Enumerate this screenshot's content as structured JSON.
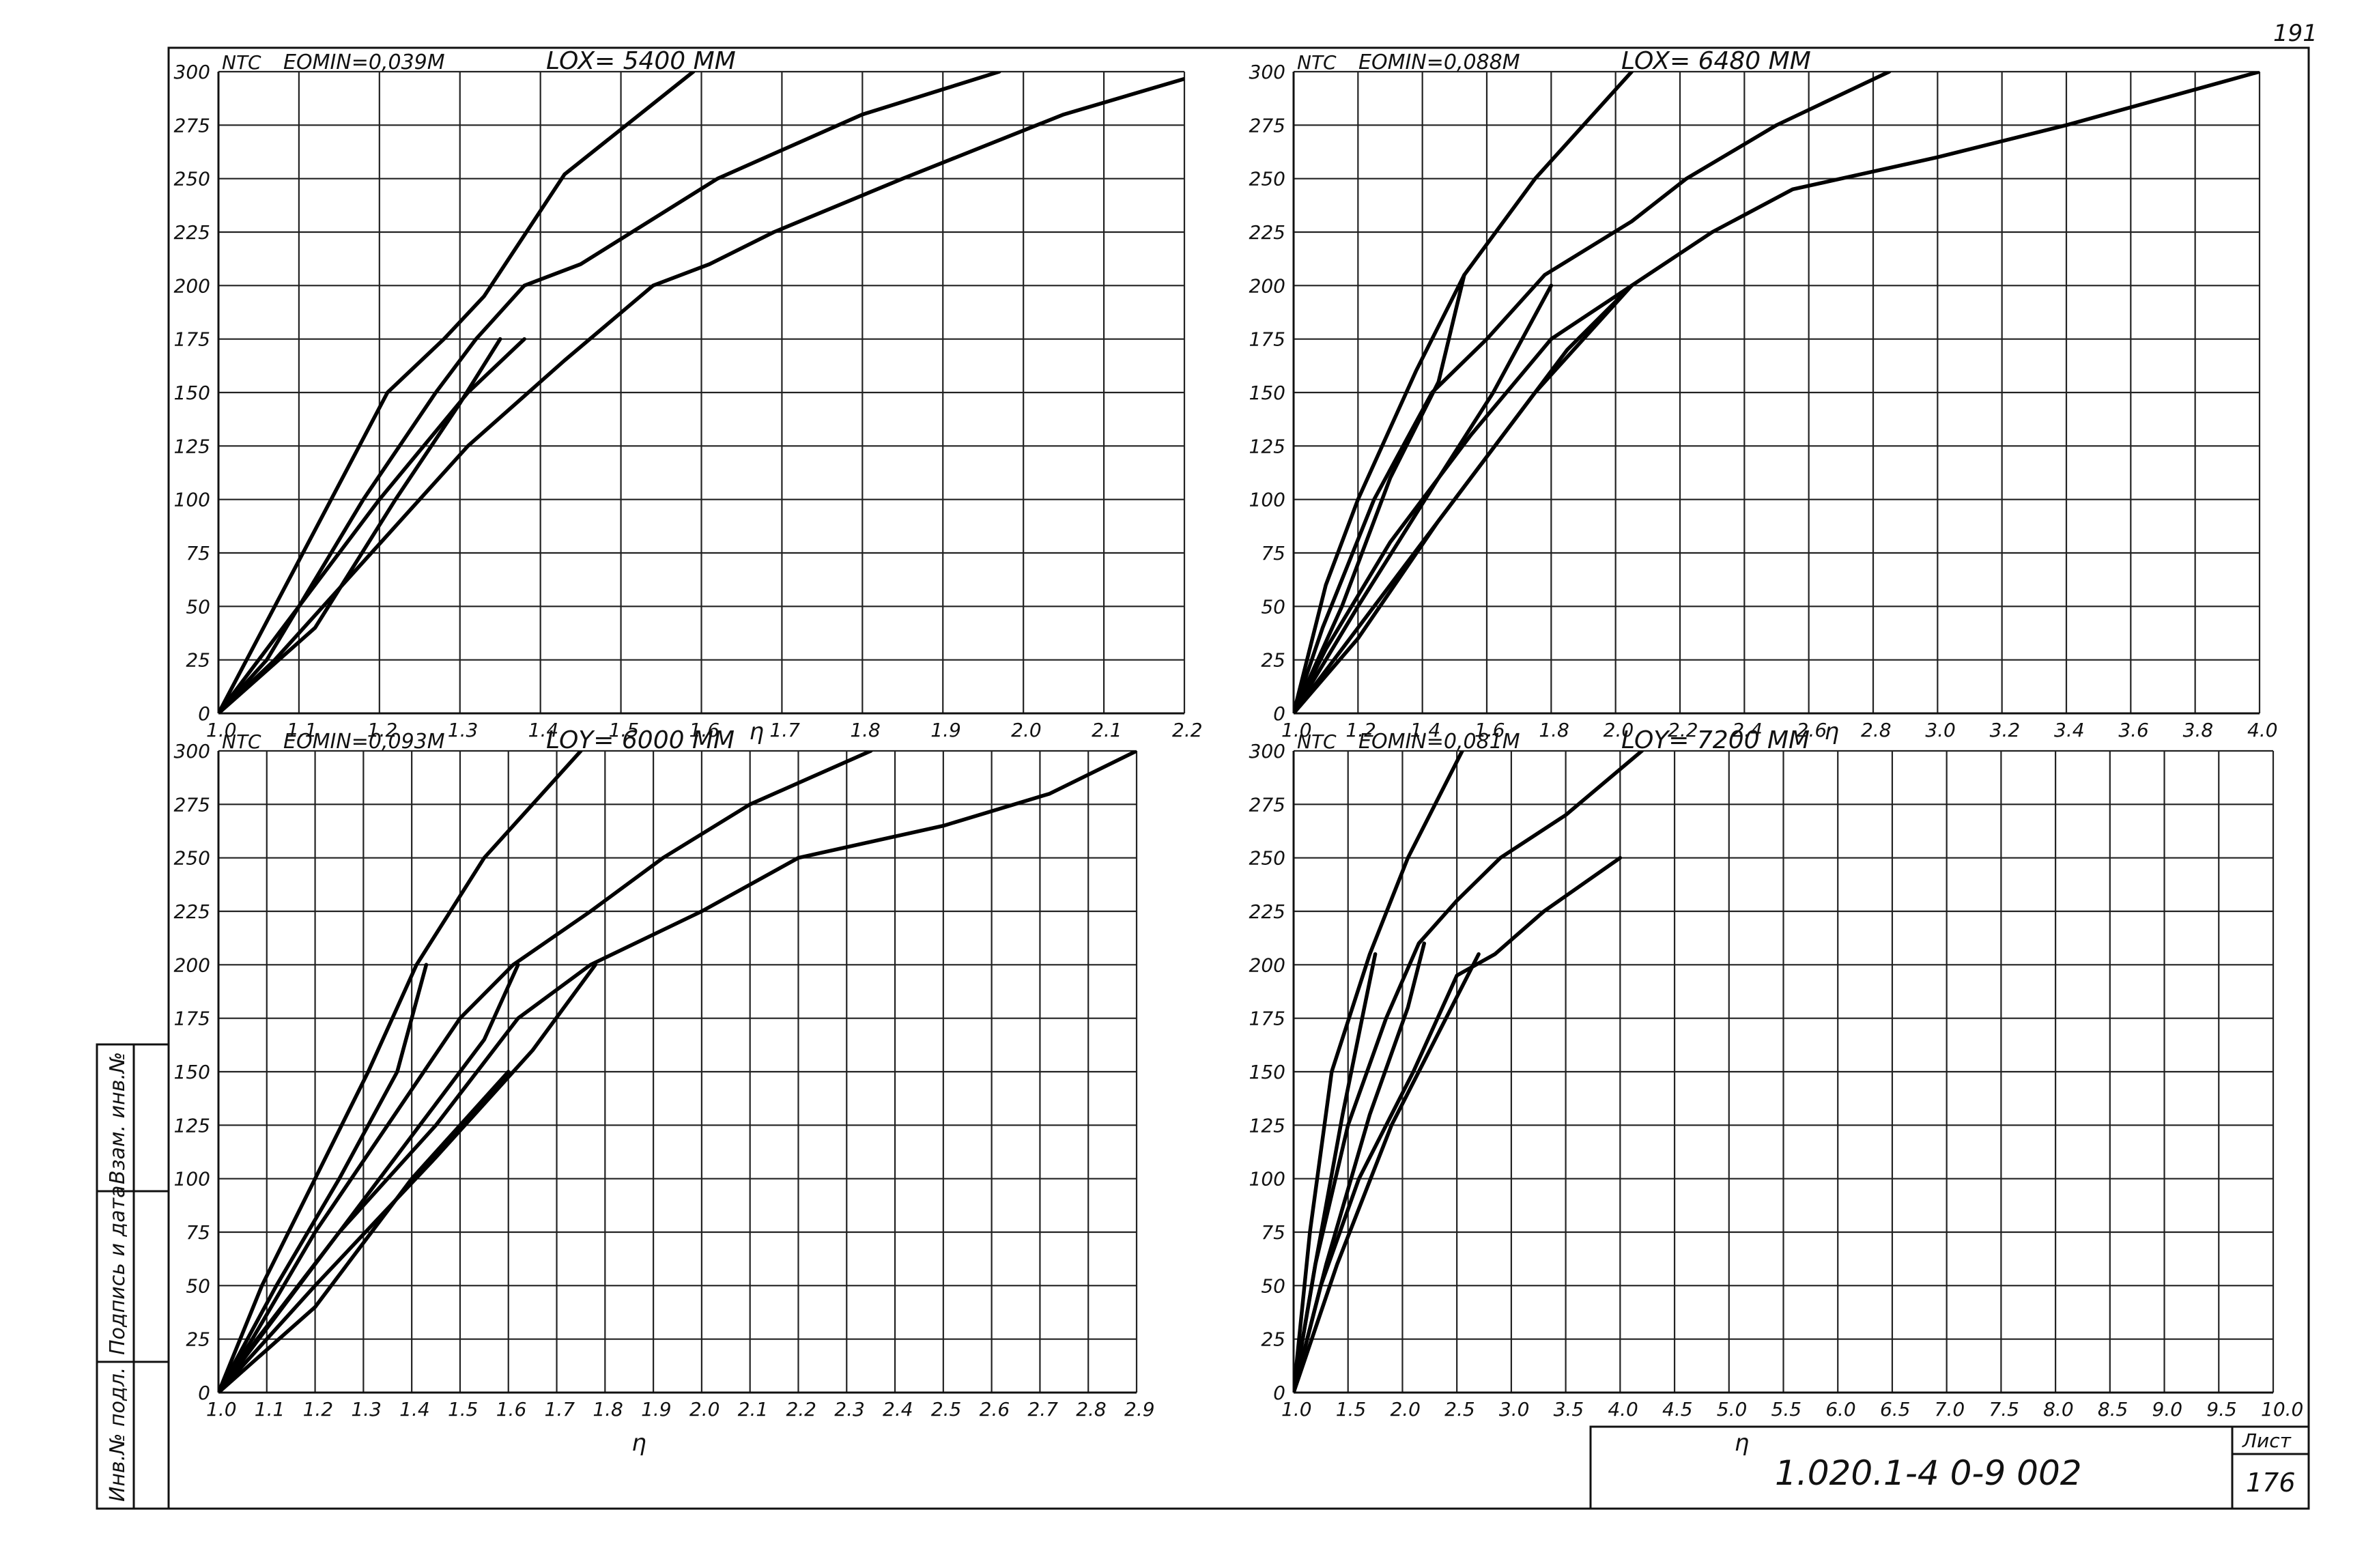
{
  "page": {
    "page_number": "191",
    "document_code": "1.020.1-4  0-9  002",
    "sheet_label": "Лист",
    "sheet_number": "176",
    "side_stamp": [
      "Инв.№ подл.",
      "Подпись и дата",
      "Взам. инв.№"
    ]
  },
  "chart_data": [
    {
      "type": "line",
      "ylabel": "NTC",
      "xlabel": "η",
      "eo_label": "EOMIN=0,039М",
      "lo_label": "LOX= 5400 ММ",
      "xlim": [
        1.0,
        2.2
      ],
      "ylim": [
        0,
        300
      ],
      "x_ticks": [
        "1.0",
        "1.1",
        "1.2",
        "1.3",
        "1.4",
        "1.5",
        "1.6",
        "1.7",
        "1.8",
        "1.9",
        "2.0",
        "2.1",
        "2.2"
      ],
      "x_tick_values": [
        1.0,
        1.1,
        1.2,
        1.3,
        1.4,
        1.5,
        1.6,
        1.7,
        1.8,
        1.9,
        2.0,
        2.1,
        2.2
      ],
      "y_ticks": [
        "0",
        "25",
        "50",
        "75",
        "100",
        "125",
        "150",
        "175",
        "200",
        "225",
        "250",
        "275",
        "300"
      ],
      "y_tick_values": [
        0,
        25,
        50,
        75,
        100,
        125,
        150,
        175,
        200,
        225,
        250,
        275,
        300
      ],
      "series": [
        {
          "x": [
            1.0,
            1.07,
            1.14,
            1.21,
            1.28,
            1.33,
            1.43,
            1.59
          ],
          "y": [
            0,
            50,
            100,
            150,
            175,
            195,
            252,
            300
          ]
        },
        {
          "x": [
            1.0,
            1.06,
            1.18,
            1.27,
            1.32,
            1.38,
            1.45,
            1.62,
            1.8,
            1.97
          ],
          "y": [
            0,
            25,
            100,
            150,
            175,
            200,
            210,
            250,
            280,
            300
          ]
        },
        {
          "x": [
            1.0,
            1.07,
            1.19,
            1.31,
            1.43,
            1.54,
            1.61,
            1.69,
            1.85,
            2.05,
            2.23
          ],
          "y": [
            0,
            25,
            75,
            125,
            165,
            200,
            210,
            225,
            250,
            280,
            300
          ]
        },
        {
          "x": [
            1.0,
            1.1,
            1.2,
            1.31,
            1.38
          ],
          "y": [
            0,
            50,
            100,
            150,
            175
          ]
        },
        {
          "x": [
            1.0,
            1.12,
            1.22,
            1.3,
            1.35
          ],
          "y": [
            0,
            40,
            100,
            145,
            175
          ]
        }
      ]
    },
    {
      "type": "line",
      "ylabel": "NTC",
      "xlabel": "η",
      "eo_label": "EOMIN=0,088М",
      "lo_label": "LOX= 6480 ММ",
      "xlim": [
        1.0,
        4.0
      ],
      "ylim": [
        0,
        300
      ],
      "x_ticks": [
        "1.0",
        "1.2",
        "1.4",
        "1.6",
        "1.8",
        "2.0",
        "2.2",
        "2.4",
        "2.6",
        "2.8",
        "3.0",
        "3.2",
        "3.4",
        "3.6",
        "3.8",
        "4.0"
      ],
      "x_tick_values": [
        1.0,
        1.2,
        1.4,
        1.6,
        1.8,
        2.0,
        2.2,
        2.4,
        2.6,
        2.8,
        3.0,
        3.2,
        3.4,
        3.6,
        3.8,
        4.0
      ],
      "y_ticks": [
        "0",
        "25",
        "50",
        "75",
        "100",
        "125",
        "150",
        "175",
        "200",
        "225",
        "250",
        "275",
        "300"
      ],
      "y_tick_values": [
        0,
        25,
        50,
        75,
        100,
        125,
        150,
        175,
        200,
        225,
        250,
        275,
        300
      ],
      "series": [
        {
          "x": [
            1.0,
            1.1,
            1.2,
            1.38,
            1.53,
            1.75,
            2.05
          ],
          "y": [
            0,
            60,
            100,
            160,
            205,
            250,
            300
          ]
        },
        {
          "x": [
            1.0,
            1.09,
            1.25,
            1.43,
            1.6,
            1.75,
            1.78,
            2.05,
            2.22,
            2.5,
            2.85
          ],
          "y": [
            0,
            40,
            100,
            150,
            175,
            200,
            205,
            230,
            250,
            275,
            300
          ]
        },
        {
          "x": [
            1.0,
            1.1,
            1.3,
            1.55,
            1.8,
            2.0,
            2.1,
            2.3,
            2.55,
            2.7,
            3.0,
            3.4,
            4.0
          ],
          "y": [
            0,
            30,
            80,
            130,
            175,
            195,
            205,
            225,
            245,
            250,
            260,
            275,
            300
          ]
        },
        {
          "x": [
            1.0,
            1.15,
            1.3,
            1.45,
            1.53
          ],
          "y": [
            0,
            50,
            110,
            155,
            205
          ]
        },
        {
          "x": [
            1.0,
            1.2,
            1.45,
            1.62,
            1.8
          ],
          "y": [
            0,
            50,
            110,
            150,
            200
          ]
        },
        {
          "x": [
            1.0,
            1.3,
            1.6,
            1.85,
            2.05
          ],
          "y": [
            0,
            60,
            120,
            170,
            200
          ]
        },
        {
          "x": [
            1.0,
            1.2,
            1.45,
            1.75,
            2.05
          ],
          "y": [
            0,
            35,
            90,
            150,
            200
          ]
        }
      ]
    },
    {
      "type": "line",
      "ylabel": "NTC",
      "xlabel": "η",
      "eo_label": "EOMIN=0,093М",
      "lo_label": "LOY= 6000 ММ",
      "xlim": [
        1.0,
        2.9
      ],
      "ylim": [
        0,
        300
      ],
      "x_ticks": [
        "1.0",
        "1.1",
        "1.2",
        "1.3",
        "1.4",
        "1.5",
        "1.6",
        "1.7",
        "1.8",
        "1.9",
        "2.0",
        "2.1",
        "2.2",
        "2.3",
        "2.4",
        "2.5",
        "2.6",
        "2.7",
        "2.8",
        "2.9"
      ],
      "x_tick_values": [
        1.0,
        1.1,
        1.2,
        1.3,
        1.4,
        1.5,
        1.6,
        1.7,
        1.8,
        1.9,
        2.0,
        2.1,
        2.2,
        2.3,
        2.4,
        2.5,
        2.6,
        2.7,
        2.8,
        2.9
      ],
      "y_ticks": [
        "0",
        "25",
        "50",
        "75",
        "100",
        "125",
        "150",
        "175",
        "200",
        "225",
        "250",
        "275",
        "300"
      ],
      "y_tick_values": [
        0,
        25,
        50,
        75,
        100,
        125,
        150,
        175,
        200,
        225,
        250,
        275,
        300
      ],
      "series": [
        {
          "x": [
            1.0,
            1.09,
            1.2,
            1.31,
            1.41,
            1.55,
            1.75
          ],
          "y": [
            0,
            50,
            100,
            150,
            200,
            250,
            300
          ]
        },
        {
          "x": [
            1.0,
            1.07,
            1.2,
            1.35,
            1.5,
            1.61,
            1.77,
            1.92,
            2.1,
            2.35
          ],
          "y": [
            0,
            25,
            75,
            125,
            175,
            200,
            225,
            250,
            275,
            300
          ]
        },
        {
          "x": [
            1.0,
            1.08,
            1.25,
            1.45,
            1.62,
            1.77,
            2.0,
            2.2,
            2.5,
            2.72,
            2.9
          ],
          "y": [
            0,
            25,
            75,
            125,
            175,
            200,
            225,
            250,
            265,
            280,
            300
          ]
        },
        {
          "x": [
            1.0,
            1.12,
            1.25,
            1.37,
            1.43
          ],
          "y": [
            0,
            50,
            100,
            150,
            200
          ]
        },
        {
          "x": [
            1.0,
            1.2,
            1.4,
            1.55,
            1.62
          ],
          "y": [
            0,
            60,
            120,
            165,
            200
          ]
        },
        {
          "x": [
            1.0,
            1.2,
            1.45,
            1.65,
            1.78
          ],
          "y": [
            0,
            50,
            110,
            160,
            200
          ]
        },
        {
          "x": [
            1.0,
            1.2,
            1.4,
            1.6
          ],
          "y": [
            0,
            40,
            100,
            150
          ]
        }
      ]
    },
    {
      "type": "line",
      "ylabel": "NTC",
      "xlabel": "η",
      "eo_label": "EOMIN=0,081М",
      "lo_label": "LOY= 7200 ММ",
      "xlim": [
        1.0,
        10.0
      ],
      "ylim": [
        0,
        300
      ],
      "x_ticks": [
        "1.0",
        "1.5",
        "2.0",
        "2.5",
        "3.0",
        "3.5",
        "4.0",
        "4.5",
        "5.0",
        "5.5",
        "6.0",
        "6.5",
        "7.0",
        "7.5",
        "8.0",
        "8.5",
        "9.0",
        "9.5",
        "10.0"
      ],
      "x_tick_values": [
        1.0,
        1.5,
        2.0,
        2.5,
        3.0,
        3.5,
        4.0,
        4.5,
        5.0,
        5.5,
        6.0,
        6.5,
        7.0,
        7.5,
        8.0,
        8.5,
        9.0,
        9.5,
        10.0
      ],
      "y_ticks": [
        "0",
        "25",
        "50",
        "75",
        "100",
        "125",
        "150",
        "175",
        "200",
        "225",
        "250",
        "275",
        "300"
      ],
      "y_tick_values": [
        0,
        25,
        50,
        75,
        100,
        125,
        150,
        175,
        200,
        225,
        250,
        275,
        300
      ],
      "series": [
        {
          "x": [
            1.0,
            1.15,
            1.35,
            1.7,
            2.05,
            2.55
          ],
          "y": [
            0,
            75,
            150,
            205,
            250,
            300
          ]
        },
        {
          "x": [
            1.0,
            1.2,
            1.5,
            1.85,
            2.15,
            2.5,
            2.9,
            3.5,
            4.2
          ],
          "y": [
            0,
            60,
            125,
            175,
            210,
            230,
            250,
            270,
            300
          ]
        },
        {
          "x": [
            1.0,
            1.25,
            1.6,
            2.1,
            2.5,
            2.85,
            3.3,
            4.0
          ],
          "y": [
            0,
            50,
            100,
            150,
            195,
            205,
            225,
            250
          ]
        },
        {
          "x": [
            1.0,
            1.2,
            1.45,
            1.65,
            1.75
          ],
          "y": [
            0,
            60,
            130,
            180,
            205
          ]
        },
        {
          "x": [
            1.0,
            1.3,
            1.7,
            2.05,
            2.2
          ],
          "y": [
            0,
            60,
            130,
            180,
            210
          ]
        },
        {
          "x": [
            1.0,
            1.4,
            1.9,
            2.4,
            2.7
          ],
          "y": [
            0,
            60,
            125,
            175,
            205
          ]
        }
      ]
    }
  ]
}
